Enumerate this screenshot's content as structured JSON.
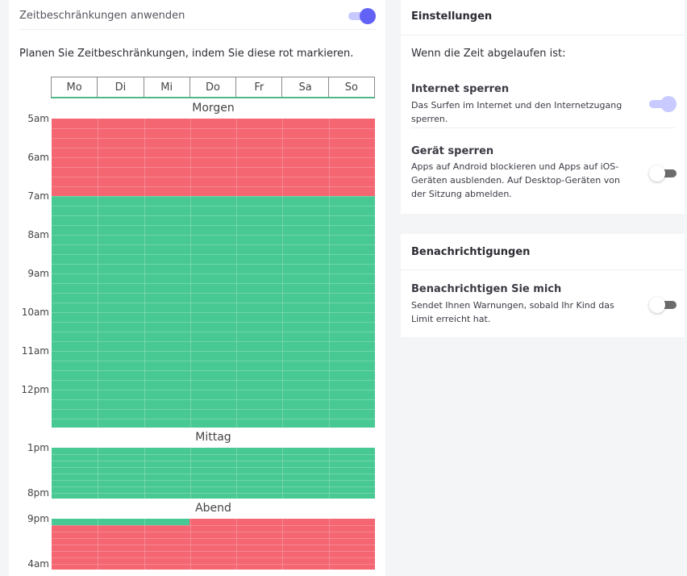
{
  "schedule": {
    "toggle_label": "Zeitbeschränkungen anwenden",
    "toggle_on": true,
    "hint": "Planen Sie Zeitbeschränkungen, indem Sie diese rot markieren.",
    "days": [
      "Mo",
      "Di",
      "Mi",
      "Do",
      "Fr",
      "Sa",
      "So"
    ],
    "sections": {
      "morning": {
        "title": "Morgen",
        "labels": [
          "5am",
          "6am",
          "7am",
          "8am",
          "9am",
          "10am",
          "11am",
          "12pm"
        ]
      },
      "midday": {
        "title": "Mittag",
        "labels": [
          "1pm",
          "8pm"
        ]
      },
      "evening": {
        "title": "Abend",
        "labels": [
          "9pm",
          "4am"
        ]
      }
    },
    "colors": {
      "blocked": "#f46672",
      "allowed": "#48c993",
      "accent": "#6263f6"
    }
  },
  "settings": {
    "title": "Einstellungen",
    "when_time_up": "Wenn die Zeit abgelaufen ist:",
    "internet_lock": {
      "title": "Internet sperren",
      "description": "Das Surfen im Internet und den Internetzugang sperren.",
      "enabled": true
    },
    "device_lock": {
      "title": "Gerät sperren",
      "description": "Apps auf Android blockieren und Apps auf iOS-Geräten ausblenden. Auf Desktop-Geräten von der Sitzung abmelden.",
      "enabled": false
    }
  },
  "notifications": {
    "title": "Benachrichtigungen",
    "notify_me": {
      "title": "Benachrichtigen Sie mich",
      "description": "Sendet Ihnen Warnungen, sobald Ihr Kind das Limit erreicht hat.",
      "enabled": false
    }
  }
}
